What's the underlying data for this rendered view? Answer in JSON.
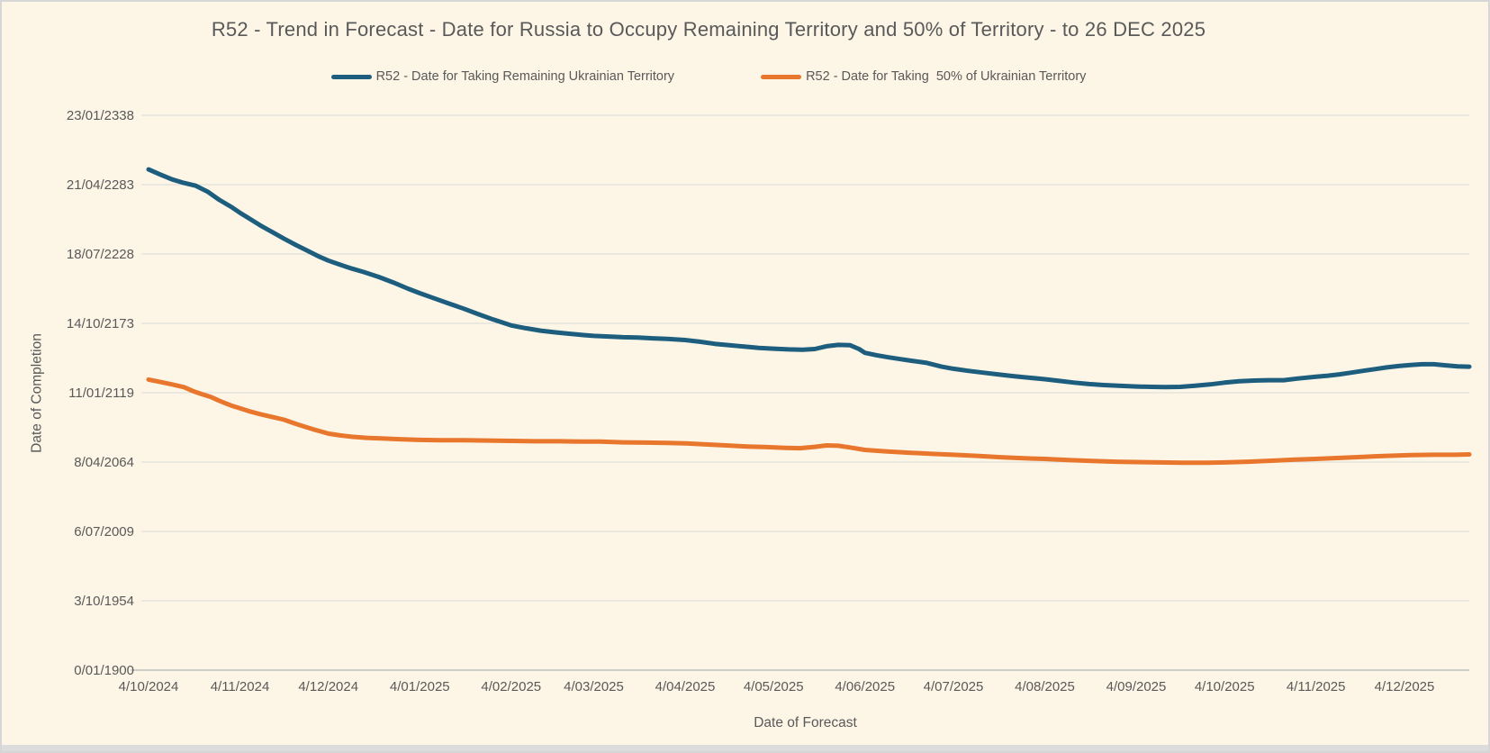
{
  "chart_data": {
    "type": "line",
    "title": "R52 - Trend in Forecast - Date for Russia to Occupy Remaining Territory and 50% of Territory - to 26 DEC 2025",
    "xlabel": "Date of Forecast",
    "ylabel": "Date of Completion",
    "legend_position": "top",
    "grid": true,
    "background_color": "#fdf6e7",
    "gridline_color": "#d9d9d9",
    "axis_line_color": "#bfbfbf",
    "text_color": "#595959",
    "x_unit": "days since 4/10/2024",
    "y_unit": "Excel date serial (days since 0/01/1900), shown as d/mm/yyyy",
    "xlim": [
      0,
      448
    ],
    "ylim": [
      0,
      160000
    ],
    "y_ticks": [
      {
        "label": "0/01/1900",
        "value": 0
      },
      {
        "label": "3/10/1954",
        "value": 20000
      },
      {
        "label": "6/07/2009",
        "value": 40000
      },
      {
        "label": "8/04/2064",
        "value": 60000
      },
      {
        "label": "11/01/2119",
        "value": 80000
      },
      {
        "label": "14/10/2173",
        "value": 100000
      },
      {
        "label": "18/07/2228",
        "value": 120000
      },
      {
        "label": "21/04/2283",
        "value": 140000
      },
      {
        "label": "23/01/2338",
        "value": 160000
      }
    ],
    "x_ticks": [
      {
        "label": "4/10/2024",
        "value": 0
      },
      {
        "label": "4/11/2024",
        "value": 31
      },
      {
        "label": "4/12/2024",
        "value": 61
      },
      {
        "label": "4/01/2025",
        "value": 92
      },
      {
        "label": "4/02/2025",
        "value": 123
      },
      {
        "label": "4/03/2025",
        "value": 151
      },
      {
        "label": "4/04/2025",
        "value": 182
      },
      {
        "label": "4/05/2025",
        "value": 212
      },
      {
        "label": "4/06/2025",
        "value": 243
      },
      {
        "label": "4/07/2025",
        "value": 273
      },
      {
        "label": "4/08/2025",
        "value": 304
      },
      {
        "label": "4/09/2025",
        "value": 335
      },
      {
        "label": "4/10/2025",
        "value": 365
      },
      {
        "label": "4/11/2025",
        "value": 396
      },
      {
        "label": "4/12/2025",
        "value": 426
      }
    ],
    "series": [
      {
        "name": "R52 - Date for Taking Remaining Ukrainian Territory",
        "color": "#1d5d7e",
        "points": [
          [
            0,
            144400
          ],
          [
            4,
            142900
          ],
          [
            8,
            141500
          ],
          [
            12,
            140500
          ],
          [
            16,
            139700
          ],
          [
            20,
            138000
          ],
          [
            24,
            135600
          ],
          [
            28,
            133600
          ],
          [
            31,
            131900
          ],
          [
            34,
            130300
          ],
          [
            38,
            128200
          ],
          [
            42,
            126300
          ],
          [
            46,
            124400
          ],
          [
            50,
            122600
          ],
          [
            54,
            120900
          ],
          [
            58,
            119200
          ],
          [
            61,
            118100
          ],
          [
            65,
            116900
          ],
          [
            69,
            115800
          ],
          [
            73,
            114800
          ],
          [
            78,
            113400
          ],
          [
            83,
            111800
          ],
          [
            88,
            110000
          ],
          [
            92,
            108700
          ],
          [
            97,
            107200
          ],
          [
            102,
            105700
          ],
          [
            107,
            104200
          ],
          [
            112,
            102600
          ],
          [
            117,
            101100
          ],
          [
            123,
            99400
          ],
          [
            128,
            98600
          ],
          [
            133,
            97900
          ],
          [
            138,
            97400
          ],
          [
            143,
            97000
          ],
          [
            148,
            96600
          ],
          [
            151,
            96400
          ],
          [
            156,
            96200
          ],
          [
            161,
            96000
          ],
          [
            166,
            95900
          ],
          [
            171,
            95700
          ],
          [
            176,
            95500
          ],
          [
            182,
            95200
          ],
          [
            187,
            94700
          ],
          [
            192,
            94100
          ],
          [
            197,
            93700
          ],
          [
            202,
            93300
          ],
          [
            207,
            92900
          ],
          [
            212,
            92700
          ],
          [
            217,
            92500
          ],
          [
            222,
            92400
          ],
          [
            226,
            92600
          ],
          [
            230,
            93400
          ],
          [
            234,
            93800
          ],
          [
            238,
            93700
          ],
          [
            241,
            92600
          ],
          [
            243,
            91500
          ],
          [
            247,
            90800
          ],
          [
            251,
            90200
          ],
          [
            255,
            89700
          ],
          [
            259,
            89200
          ],
          [
            264,
            88600
          ],
          [
            269,
            87500
          ],
          [
            273,
            86900
          ],
          [
            278,
            86300
          ],
          [
            283,
            85800
          ],
          [
            288,
            85300
          ],
          [
            293,
            84800
          ],
          [
            298,
            84400
          ],
          [
            304,
            83900
          ],
          [
            309,
            83400
          ],
          [
            314,
            82900
          ],
          [
            319,
            82500
          ],
          [
            324,
            82200
          ],
          [
            329,
            82000
          ],
          [
            335,
            81800
          ],
          [
            340,
            81700
          ],
          [
            345,
            81600
          ],
          [
            350,
            81700
          ],
          [
            355,
            82000
          ],
          [
            360,
            82400
          ],
          [
            365,
            82900
          ],
          [
            370,
            83300
          ],
          [
            375,
            83500
          ],
          [
            380,
            83600
          ],
          [
            385,
            83600
          ],
          [
            390,
            84100
          ],
          [
            396,
            84600
          ],
          [
            400,
            84900
          ],
          [
            404,
            85300
          ],
          [
            408,
            85800
          ],
          [
            412,
            86300
          ],
          [
            416,
            86800
          ],
          [
            420,
            87300
          ],
          [
            424,
            87700
          ],
          [
            428,
            88000
          ],
          [
            432,
            88200
          ],
          [
            436,
            88200
          ],
          [
            440,
            87900
          ],
          [
            444,
            87600
          ],
          [
            448,
            87500
          ]
        ]
      },
      {
        "name": "R52 - Date for Taking  50% of Ukrainian Territory",
        "color": "#e8762d",
        "points": [
          [
            0,
            83800
          ],
          [
            4,
            83100
          ],
          [
            8,
            82400
          ],
          [
            12,
            81600
          ],
          [
            15,
            80500
          ],
          [
            18,
            79600
          ],
          [
            21,
            78800
          ],
          [
            24,
            77700
          ],
          [
            28,
            76300
          ],
          [
            31,
            75500
          ],
          [
            34,
            74700
          ],
          [
            38,
            73800
          ],
          [
            42,
            73000
          ],
          [
            46,
            72200
          ],
          [
            50,
            71000
          ],
          [
            53,
            70200
          ],
          [
            56,
            69400
          ],
          [
            59,
            68700
          ],
          [
            61,
            68200
          ],
          [
            65,
            67700
          ],
          [
            69,
            67300
          ],
          [
            74,
            67000
          ],
          [
            79,
            66800
          ],
          [
            85,
            66600
          ],
          [
            92,
            66400
          ],
          [
            99,
            66300
          ],
          [
            107,
            66300
          ],
          [
            115,
            66200
          ],
          [
            123,
            66100
          ],
          [
            131,
            66000
          ],
          [
            139,
            66000
          ],
          [
            147,
            65900
          ],
          [
            153,
            65900
          ],
          [
            161,
            65700
          ],
          [
            169,
            65600
          ],
          [
            176,
            65500
          ],
          [
            182,
            65400
          ],
          [
            189,
            65100
          ],
          [
            196,
            64800
          ],
          [
            203,
            64500
          ],
          [
            210,
            64300
          ],
          [
            216,
            64100
          ],
          [
            221,
            64000
          ],
          [
            226,
            64400
          ],
          [
            230,
            64800
          ],
          [
            234,
            64700
          ],
          [
            238,
            64200
          ],
          [
            243,
            63500
          ],
          [
            250,
            63100
          ],
          [
            258,
            62700
          ],
          [
            265,
            62400
          ],
          [
            273,
            62100
          ],
          [
            281,
            61800
          ],
          [
            289,
            61400
          ],
          [
            297,
            61100
          ],
          [
            304,
            60900
          ],
          [
            312,
            60600
          ],
          [
            320,
            60300
          ],
          [
            328,
            60100
          ],
          [
            335,
            60000
          ],
          [
            343,
            59900
          ],
          [
            351,
            59800
          ],
          [
            359,
            59800
          ],
          [
            365,
            59900
          ],
          [
            373,
            60100
          ],
          [
            381,
            60400
          ],
          [
            389,
            60700
          ],
          [
            396,
            60900
          ],
          [
            404,
            61200
          ],
          [
            412,
            61500
          ],
          [
            420,
            61800
          ],
          [
            428,
            62000
          ],
          [
            436,
            62100
          ],
          [
            443,
            62100
          ],
          [
            448,
            62200
          ]
        ]
      }
    ]
  }
}
